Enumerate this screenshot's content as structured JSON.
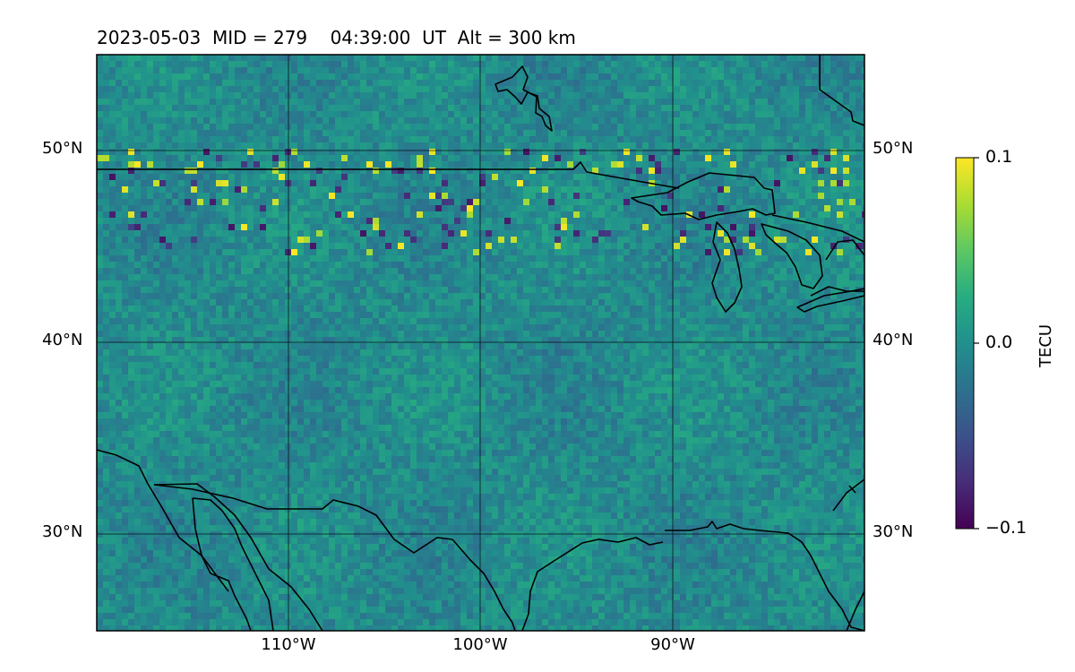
{
  "figure": {
    "title": "2023-05-03  MID = 279    04:39:00  UT  Alt = 300 km"
  },
  "map": {
    "lon_range": [
      -120,
      -80
    ],
    "lat_range": [
      25,
      55
    ],
    "gridlines": true,
    "lat_ticks": [
      {
        "value": 50,
        "label": "50°N"
      },
      {
        "value": 40,
        "label": "40°N"
      },
      {
        "value": 30,
        "label": "30°N"
      }
    ],
    "lon_ticks": [
      {
        "value": -110,
        "label": "110°W"
      },
      {
        "value": -100,
        "label": "100°W"
      },
      {
        "value": -90,
        "label": "90°W"
      }
    ],
    "field": "differential TEC (viridis colormap)",
    "coastlines": true,
    "borders": true
  },
  "colorbar": {
    "label": "TECU",
    "min": -0.1,
    "max": 0.1,
    "ticks": [
      {
        "value": 0.1,
        "label": "0.1"
      },
      {
        "value": 0.0,
        "label": "0.0"
      },
      {
        "value": -0.1,
        "label": "−0.1"
      }
    ],
    "colormap": [
      "#440154",
      "#472c7a",
      "#3b518b",
      "#2c718e",
      "#21908d",
      "#27ad81",
      "#5cc863",
      "#aadc32",
      "#fde725"
    ]
  }
}
